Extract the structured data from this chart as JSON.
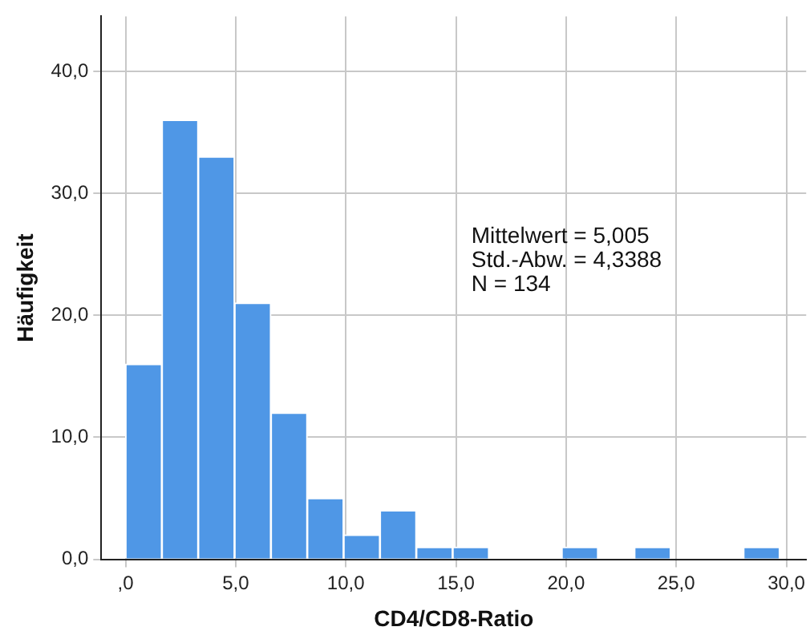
{
  "chart_data": {
    "type": "histogram",
    "xlabel": "CD4/CD8-Ratio",
    "ylabel": "Häufigkeit",
    "bins": [
      0,
      1.65,
      3.3,
      4.95,
      6.6,
      8.25,
      9.9,
      11.55,
      13.2,
      14.85,
      16.5,
      18.15,
      19.8,
      21.45,
      23.1,
      24.75,
      26.4,
      28.05,
      29.7
    ],
    "values": [
      16,
      36,
      33,
      21,
      12,
      5,
      2,
      4,
      1,
      1,
      0,
      0,
      1,
      0,
      1,
      0,
      0,
      1
    ],
    "color": "#4f97e6",
    "xlim": [
      -1.1,
      30.9
    ],
    "ylim": [
      0,
      44.5
    ],
    "xticks": [
      {
        "value": 0,
        "label": ",0"
      },
      {
        "value": 5,
        "label": "5,0"
      },
      {
        "value": 10,
        "label": "10,0"
      },
      {
        "value": 15,
        "label": "15,0"
      },
      {
        "value": 20,
        "label": "20,0"
      },
      {
        "value": 25,
        "label": "25,0"
      },
      {
        "value": 30,
        "label": "30,0"
      }
    ],
    "yticks": [
      {
        "value": 0,
        "label": "0,0"
      },
      {
        "value": 10,
        "label": "10,0"
      },
      {
        "value": 20,
        "label": "20,0"
      },
      {
        "value": 30,
        "label": "30,0"
      },
      {
        "value": 40,
        "label": "40,0"
      }
    ],
    "grid": true,
    "annotations": [
      "Mittelwert = 5,005",
      "Std.-Abw. = 4,3388",
      "N = 134"
    ]
  }
}
